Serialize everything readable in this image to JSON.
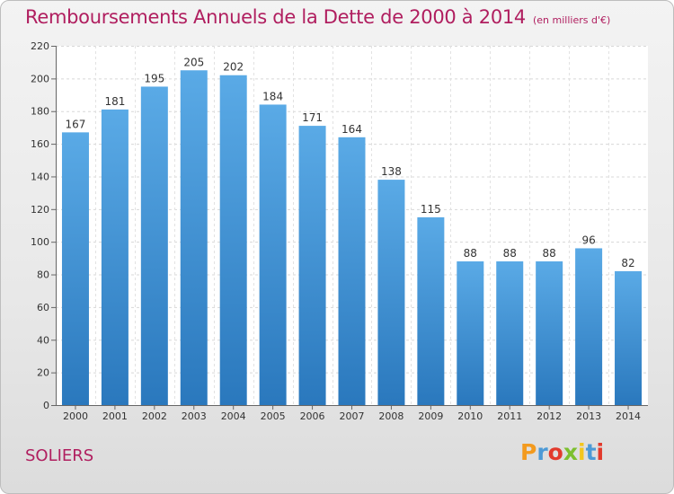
{
  "title": "Remboursements Annuels de la Dette de 2000 à 2014",
  "unit": "(en milliers d'€)",
  "commune": "SOLIERS",
  "logo": {
    "letters": [
      "P",
      "r",
      "o",
      "x",
      "i",
      "t",
      "i"
    ],
    "colors": [
      "#f39a1e",
      "#4d9ad6",
      "#e23a2c",
      "#7cbf2e",
      "#f3c61e",
      "#4d9ad6",
      "#e23a2c"
    ]
  },
  "colors": {
    "bar_top": "#5aaae6",
    "bar_bottom": "#2a78bd",
    "title": "#b01e5f"
  },
  "chart_data": {
    "type": "bar",
    "title": "Remboursements Annuels de la Dette de 2000 à 2014",
    "categories": [
      "2000",
      "2001",
      "2002",
      "2003",
      "2004",
      "2005",
      "2006",
      "2007",
      "2008",
      "2009",
      "2010",
      "2011",
      "2012",
      "2013",
      "2014"
    ],
    "values": [
      167,
      181,
      195,
      205,
      202,
      184,
      171,
      164,
      138,
      115,
      88,
      88,
      88,
      96,
      82
    ],
    "yticks": [
      0,
      20,
      40,
      60,
      80,
      100,
      120,
      140,
      160,
      180,
      200,
      220
    ],
    "ylim": [
      0,
      220
    ],
    "grid": true,
    "legend": "none"
  }
}
